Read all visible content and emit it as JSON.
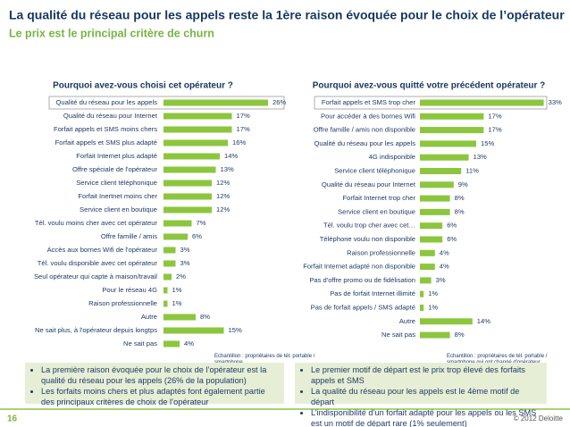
{
  "header": {
    "title": "La qualité du réseau pour les appels reste la 1ère raison évoquée pour le choix de l’opérateur",
    "subtitle": "Le prix est le principal critère de churn"
  },
  "chart_data": [
    {
      "type": "bar",
      "orientation": "horizontal",
      "title": "Pourquoi avez-vous choisi cet opérateur ?",
      "color": "#8cc63e",
      "categories": [
        "Qualité du réseau pour les appels",
        "Qualité du réseau pour Internet",
        "Forfait appels et SMS moins chers",
        "Forfait appels et SMS plus adapté",
        "Forfait Internet plus adapté",
        "Offre spéciale de l'opérateur",
        "Service client téléphonique",
        "Forfait Inertnet moins cher",
        "Service client en boutique",
        "Tél. voulu moins cher avec cet opérateur",
        "Offre famille / amis",
        "Accès aux bornes Wifi de l'opérateur",
        "Tél. voulu disponible avec cet opérateur",
        "Seul opérateur qui capte à maison/travail",
        "Pour le réseau 4G",
        "Raison professionnelle",
        "Autre",
        "Ne sait plus, à l'opérateur depuis longtps",
        "Ne sait pas"
      ],
      "values": [
        26,
        17,
        17,
        16,
        14,
        13,
        12,
        12,
        12,
        7,
        6,
        3,
        3,
        2,
        1,
        1,
        8,
        15,
        4
      ],
      "value_labels": [
        "26%",
        "17%",
        "17%",
        "16%",
        "14%",
        "13%",
        "12%",
        "12%",
        "12%",
        "7%",
        "6%",
        "3%",
        "3%",
        "2%",
        "1%",
        "1%",
        "8%",
        "15%",
        "4%"
      ],
      "note": "Echantillon : propriétaires de tél. portable / smartphone"
    },
    {
      "type": "bar",
      "orientation": "horizontal",
      "title": "Pourquoi avez-vous quitté votre précédent opérateur ?",
      "color": "#8cc63e",
      "categories": [
        "Forfait appels et SMS trop cher",
        "Pour accéder à des bornes Wifi",
        "Offre famille / amis non disponible",
        "Qualité du réseau pour les appels",
        "4G indisponible",
        "Service client téléphonique",
        "Qualité du réseau pour Internet",
        "Forfait Internet trop cher",
        "Service client en boutique",
        "Tél. voulu trop cher avec cet…",
        "Téléphone voulu non disponible",
        "Raison professionnelle",
        "Forfait Internet adapté non disponible",
        "Pas d'offre promo ou de fidélisation",
        "Pas de forfait Internet illimité",
        "Pas de forfait appels / SMS adapté",
        "Autre",
        "Ne sait pas"
      ],
      "values": [
        33,
        17,
        17,
        15,
        13,
        11,
        9,
        8,
        8,
        6,
        6,
        4,
        4,
        3,
        1,
        1,
        14,
        8
      ],
      "value_labels": [
        "33%",
        "17%",
        "17%",
        "15%",
        "13%",
        "11%",
        "9%",
        "8%",
        "8%",
        "6%",
        "6%",
        "4%",
        "4%",
        "3%",
        "1%",
        "1%",
        "14%",
        "8%"
      ],
      "note": "Echantillon : propriétaires de tél. portable / smartphone qui ont changé d'opérateur"
    }
  ],
  "bullets_left": [
    "La première raison évoquée pour le choix de l’opérateur est la qualité du réseau pour les appels (26% de la population)",
    "Les forfaits moins chers et plus adaptés font également partie des principaux critères de choix de l’opérateur"
  ],
  "bullets_right": [
    "Le premier motif de départ est le prix trop élevé des forfaits appels et SMS",
    "La qualité du réseau pour les appels est le 4ème motif de départ",
    "L’indisponibilité d’un forfait adapté pour les appels ou les SMS est un motif de départ rare (1% seulement)"
  ],
  "footer": {
    "page": "16",
    "copyright": "© 2012 Deloitte"
  }
}
